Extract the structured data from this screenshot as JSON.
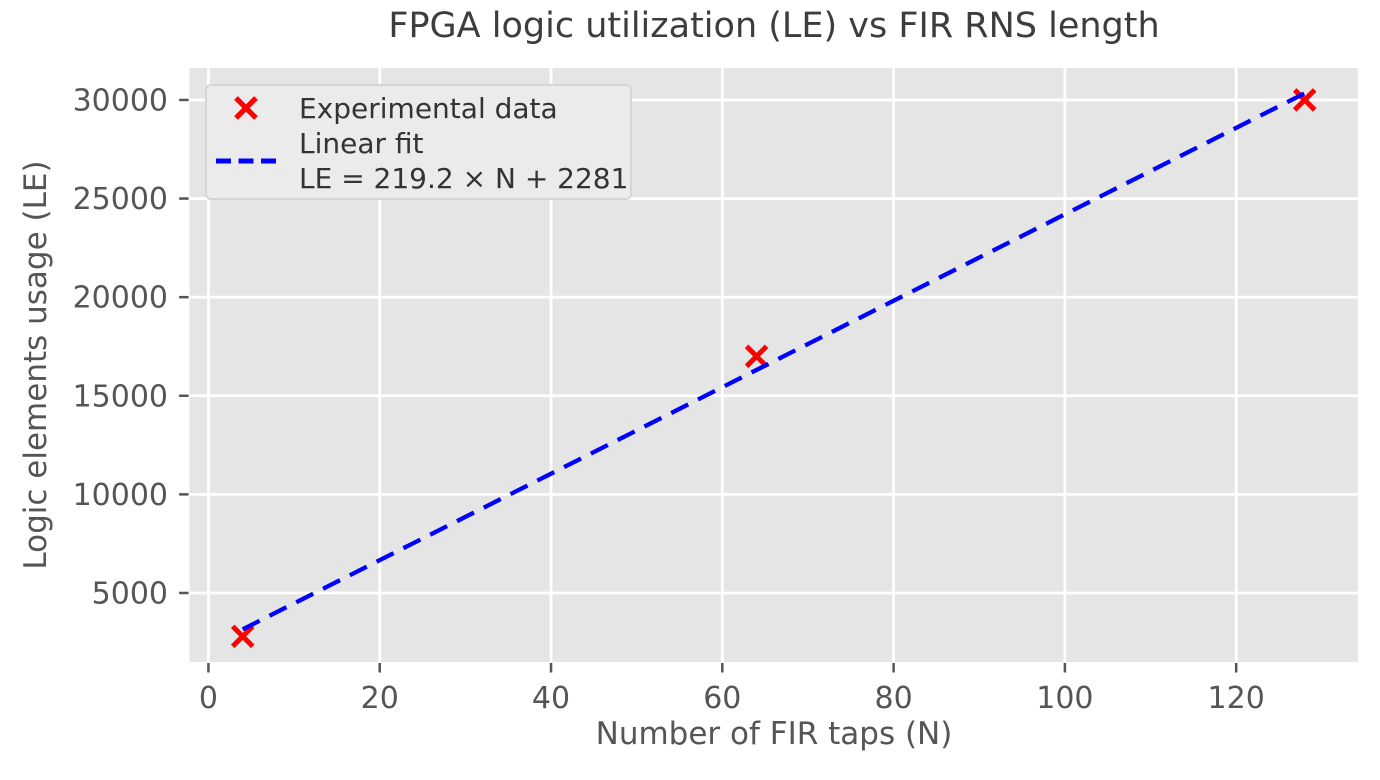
{
  "chart_data": {
    "type": "scatter",
    "title": "FPGA logic utilization (LE) vs FIR RNS length",
    "xlabel": "Number of FIR taps (N)",
    "ylabel": "Logic elements usage (LE)",
    "xlim": [
      -2.2,
      134.2
    ],
    "ylim": [
      1500,
      31620
    ],
    "x_ticks": [
      0,
      20,
      40,
      60,
      80,
      100,
      120
    ],
    "y_ticks": [
      5000,
      10000,
      15000,
      20000,
      25000,
      30000
    ],
    "grid": true,
    "plot_bg_color": "#e5e5e5",
    "grid_color": "#ffffff",
    "tick_color": "#555555",
    "series": [
      {
        "name": "Experimental data",
        "type": "scatter",
        "marker": "x",
        "color": "#ff0000",
        "x": [
          4,
          64,
          128
        ],
        "y": [
          2800,
          17000,
          30000
        ]
      },
      {
        "name": "Linear fit",
        "equation": "LE = 219.2 × N + 2281",
        "type": "line",
        "line_style": "dashed",
        "color": "#0000ff",
        "slope": 219.2,
        "intercept": 2281,
        "x_start": 4,
        "x_end": 128
      }
    ],
    "legend": {
      "position": "upper left",
      "items": [
        {
          "label": "Experimental data",
          "marker": "x",
          "color": "#ff0000"
        },
        {
          "label_line1": "Linear fit",
          "label_line2": "LE = 219.2 × N + 2281",
          "marker": "dashed-line",
          "color": "#0000ff"
        }
      ]
    }
  }
}
